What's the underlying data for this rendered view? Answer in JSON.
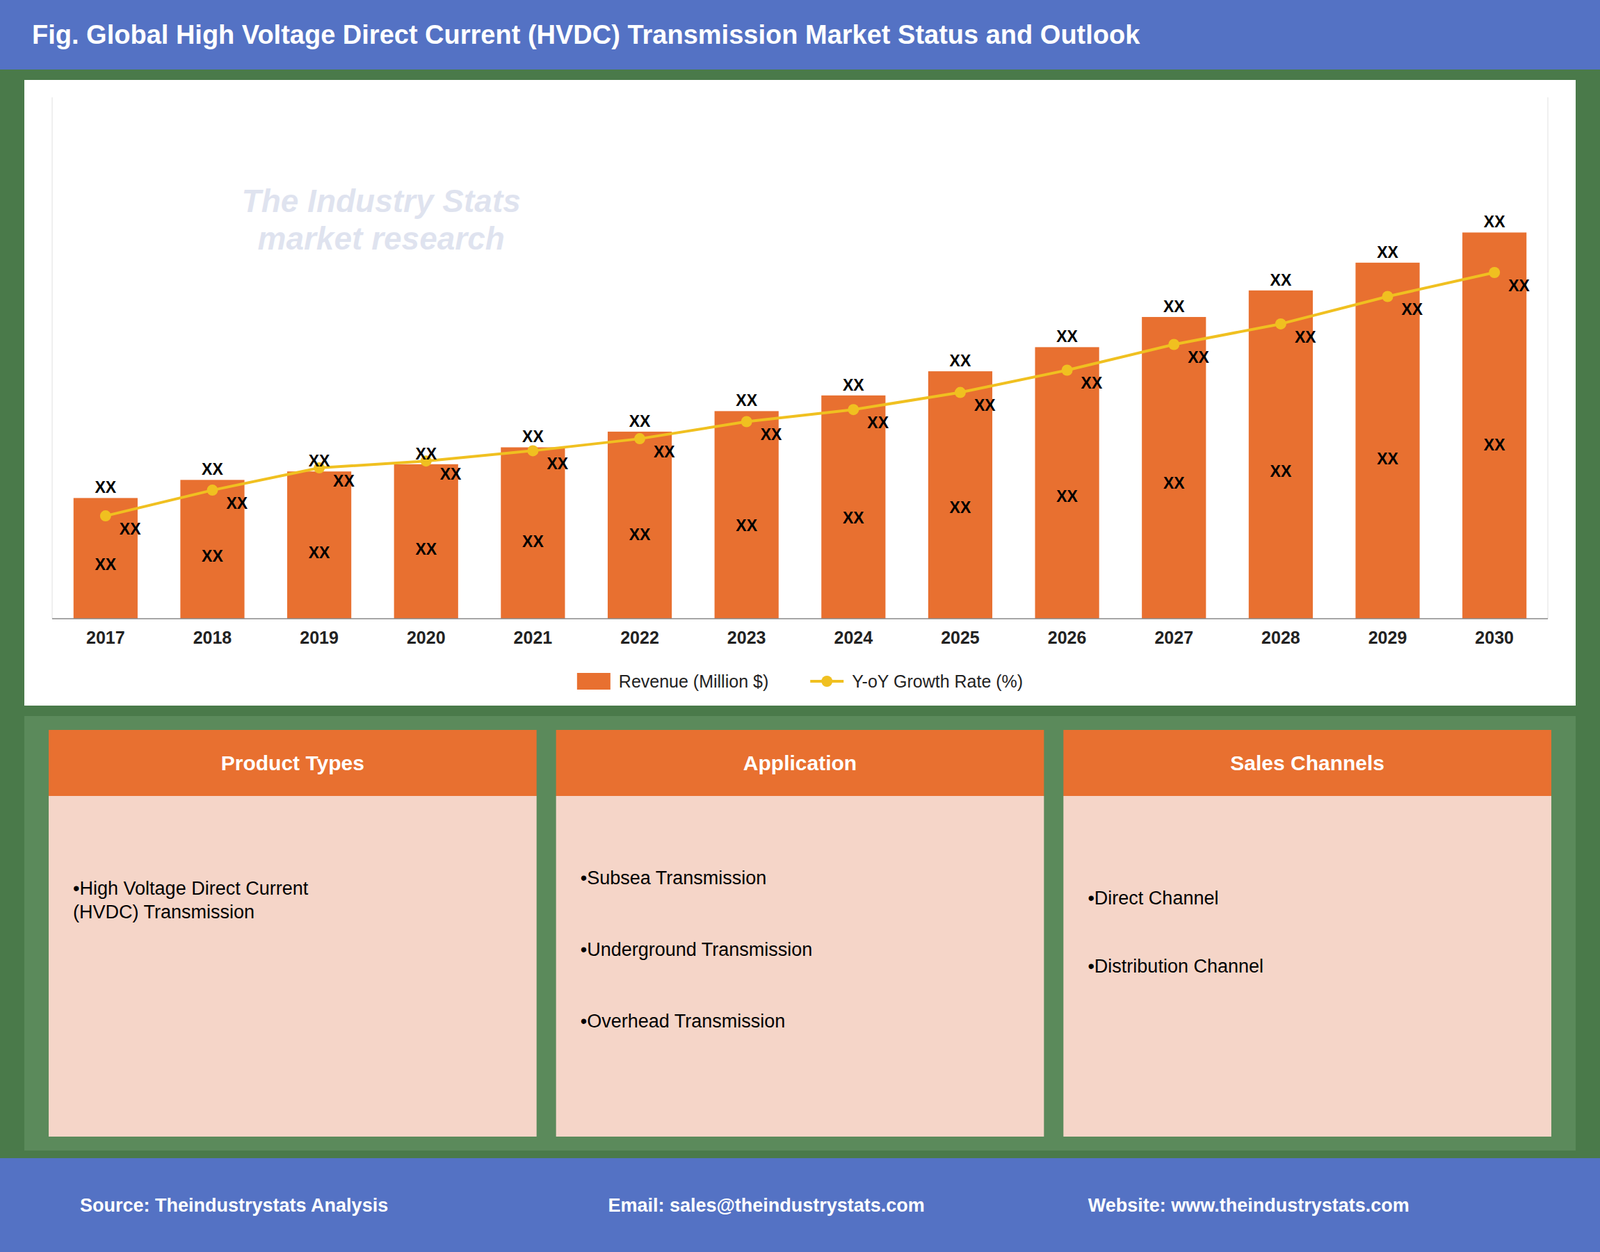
{
  "chart_data": {
    "type": "bar",
    "title": "Fig. Global High Voltage Direct Current (HVDC) Transmission Market Status and Outlook",
    "categories": [
      "2017",
      "2018",
      "2019",
      "2020",
      "2021",
      "2022",
      "2023",
      "2024",
      "2025",
      "2026",
      "2027",
      "2028",
      "2029",
      "2030"
    ],
    "series": [
      {
        "name": "Revenue (Million $)",
        "type": "bar",
        "color": "#e87030",
        "values": [
          1,
          1.15,
          1.22,
          1.28,
          1.42,
          1.55,
          1.72,
          1.85,
          2.05,
          2.25,
          2.5,
          2.72,
          2.95,
          3.2
        ],
        "value_labels": [
          "XX",
          "XX",
          "XX",
          "XX",
          "XX",
          "XX",
          "XX",
          "XX",
          "XX",
          "XX",
          "XX",
          "XX",
          "XX",
          "XX"
        ]
      },
      {
        "name": "Y-oY Growth Rate (%)",
        "type": "line",
        "axis": "y2",
        "color": "#f0c020",
        "marker": "circle",
        "values": [
          1.5,
          1.65,
          1.78,
          1.82,
          1.88,
          1.95,
          2.05,
          2.12,
          2.22,
          2.35,
          2.5,
          2.62,
          2.78,
          2.92
        ],
        "value_labels": [
          "XX",
          "XX",
          "XX",
          "XX",
          "XX",
          "XX",
          "XX",
          "XX",
          "XX",
          "XX",
          "XX",
          "XX",
          "XX",
          "XX"
        ]
      }
    ],
    "ylim": [
      0,
      4.32
    ],
    "y2lim": [
      0.9,
      3.942
    ],
    "grid": false,
    "legend": "bottom",
    "data_labels": true,
    "tick_labels": "x",
    "annotations": [
      "The Industry Stats\nmarket research",
      "Source: Theindustrystats Analysis",
      "Email: sales@theindustrystats.com",
      "Website: www.theindustrystats.com"
    ],
    "panels": [
      {
        "header": "Product Types",
        "items": [
          "•High Voltage Direct Current\n(HVDC) Transmission"
        ]
      },
      {
        "header": "Application",
        "items": [
          "•Subsea Transmission",
          "•Underground Transmission",
          "•Overhead Transmission"
        ]
      },
      {
        "header": "Sales Channels",
        "items": [
          "•Direct Channel",
          "•Distribution Channel"
        ]
      }
    ]
  }
}
